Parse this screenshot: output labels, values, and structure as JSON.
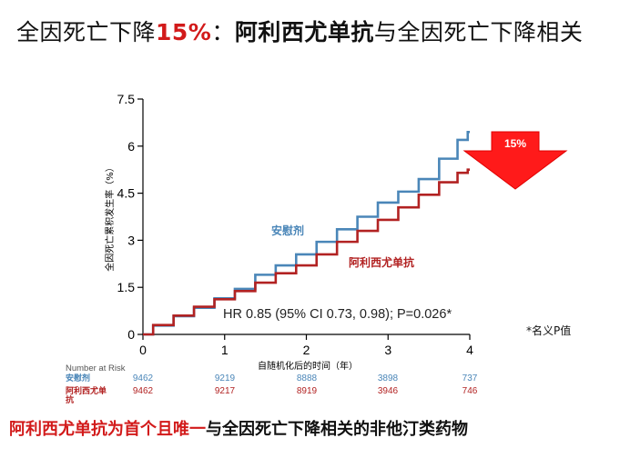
{
  "title": {
    "part1": "全因死亡下降",
    "percent": "15%",
    "colon": "：",
    "drug": "阿利西尤单抗",
    "part2": "与全因死亡下降相关"
  },
  "chart_data": {
    "type": "line",
    "ylabel": "全因死亡累积发生率（%）",
    "xlabel": "自随机化后的时间（年）",
    "xlim": [
      0,
      4
    ],
    "ylim": [
      0,
      7.5
    ],
    "xticks": [
      "0",
      "1",
      "2",
      "3",
      "4"
    ],
    "yticks": [
      "0",
      "1.5",
      "3",
      "4.5",
      "6",
      "7.5"
    ],
    "grid": false,
    "series": [
      {
        "name": "安慰剂",
        "color": "#4a86b8",
        "x": [
          0,
          0.25,
          0.5,
          0.75,
          1,
          1.25,
          1.5,
          1.75,
          2,
          2.25,
          2.5,
          2.75,
          3,
          3.25,
          3.5,
          3.75,
          3.95,
          4
        ],
        "y": [
          0,
          0.28,
          0.58,
          0.85,
          1.15,
          1.45,
          1.9,
          2.2,
          2.55,
          2.95,
          3.35,
          3.75,
          4.2,
          4.55,
          4.95,
          5.6,
          6.2,
          6.45
        ]
      },
      {
        "name": "阿利西尤单抗",
        "color": "#b22222",
        "x": [
          0,
          0.25,
          0.5,
          0.75,
          1,
          1.25,
          1.5,
          1.75,
          2,
          2.25,
          2.5,
          2.75,
          3,
          3.25,
          3.5,
          3.75,
          3.95,
          4
        ],
        "y": [
          0,
          0.3,
          0.6,
          0.88,
          1.12,
          1.38,
          1.65,
          1.95,
          2.2,
          2.55,
          2.95,
          3.3,
          3.65,
          4.05,
          4.45,
          4.85,
          5.15,
          5.25
        ]
      }
    ],
    "annotation": "HR 0.85 (95% CI 0.73, 0.98); P=0.026*",
    "arrow_label": "15%",
    "note": "*名义P值",
    "risk_table": {
      "header": "Number at Risk",
      "rows": [
        {
          "name": "安慰剂",
          "values": [
            "9462",
            "9219",
            "8888",
            "3898",
            "737"
          ],
          "color": "#4a86b8"
        },
        {
          "name": "阿利西尤单抗",
          "values": [
            "9462",
            "9217",
            "8919",
            "3946",
            "746"
          ],
          "color": "#b22222"
        }
      ]
    }
  },
  "footer": {
    "red": "阿利西尤单抗为首个且唯一",
    "black": "与全因死亡下降相关的非他汀类药物"
  }
}
